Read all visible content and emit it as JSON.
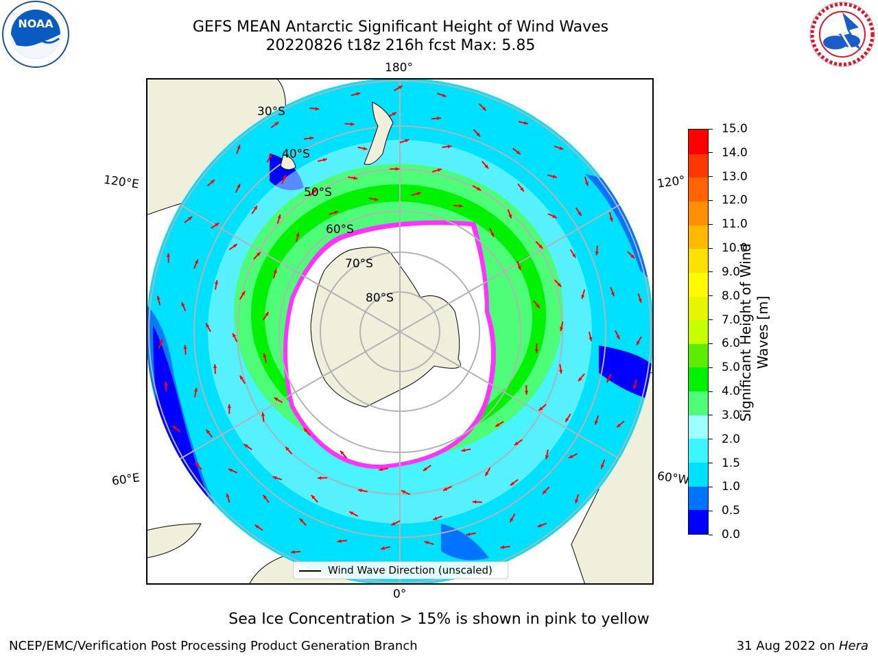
{
  "title": {
    "line1": "GEFS MEAN Antarctic Significant Height of Wind Waves",
    "line2": "20220826 t18z 216h fcst   Max: 5.85"
  },
  "logos": {
    "left": {
      "text": "NOAA",
      "icon": "noaa-logo-icon"
    },
    "right": {
      "icon": "nws-logo-icon"
    }
  },
  "map": {
    "projection": "south-polar-stereographic",
    "lon_labels": {
      "top": "180°",
      "bottom": "0°",
      "upper_left": "120°E",
      "lower_left": "60°E",
      "upper_right": "120°",
      "lower_right": "60°W"
    },
    "lat_labels": [
      "30°S",
      "40°S",
      "50°S",
      "60°S",
      "70°S",
      "80°S"
    ],
    "colors": {
      "land": "#efefdc",
      "ice_edge": "#ff33ff",
      "arrow": "#ff0000",
      "grid": "#b3b3b3"
    }
  },
  "legend": {
    "label": "Wind Wave Direction (unscaled)"
  },
  "colorbar": {
    "label_line1": "Significant Height of Wind",
    "label_line2": "Waves [m]",
    "ticks": [
      "0.0",
      "0.5",
      "1.0",
      "1.5",
      "2.0",
      "3.0",
      "4.0",
      "5.0",
      "6.0",
      "7.0",
      "8.0",
      "9.0",
      "10.0",
      "11.0",
      "12.0",
      "13.0",
      "14.0",
      "15.0"
    ],
    "colors": [
      "#0000ff",
      "#0073ff",
      "#00e1ff",
      "#3cf5ff",
      "#9efeff",
      "#4dfd77",
      "#00f200",
      "#5ced00",
      "#c8ff00",
      "#e6f500",
      "#fffa00",
      "#ffe100",
      "#ffba00",
      "#ff8f00",
      "#ff6400",
      "#ff3700",
      "#ff0000"
    ]
  },
  "subtitle": "Sea Ice Concentration > 15% is shown in pink to yellow",
  "footer": {
    "left": "NCEP/EMC/Verification Post Processing Product Generation Branch",
    "right_date": "31 Aug 2022 on ",
    "right_host": "Hera"
  }
}
